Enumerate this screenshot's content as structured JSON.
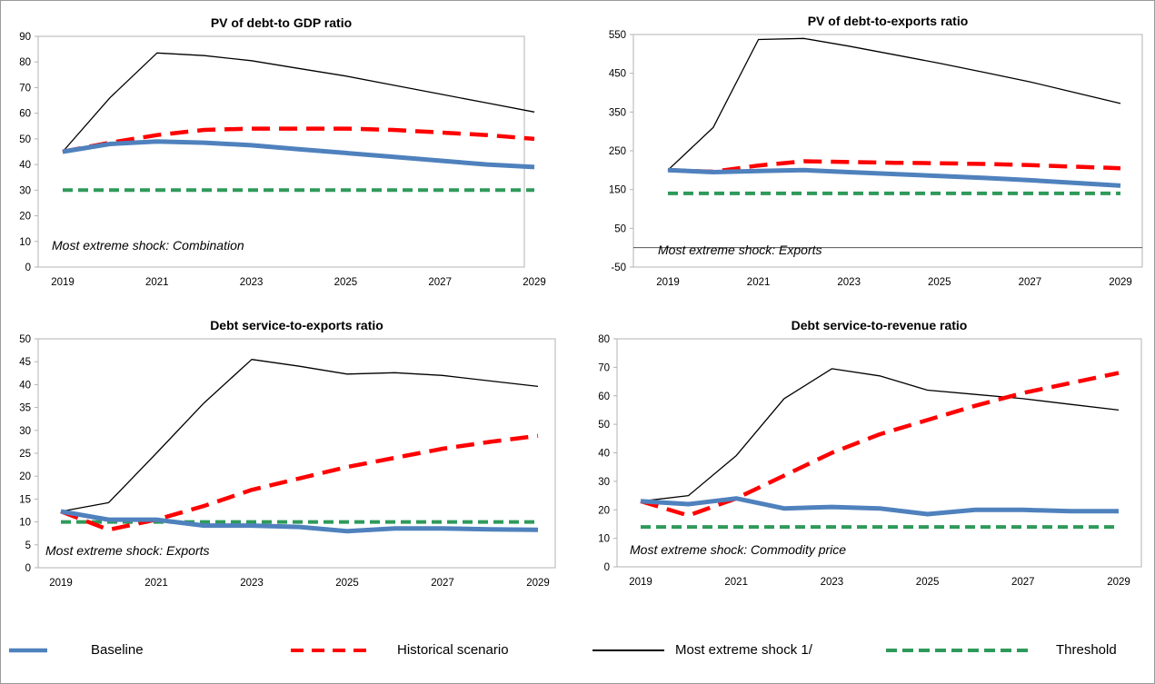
{
  "chart_data": [
    {
      "type": "line",
      "title": "PV of debt-to GDP ratio",
      "note": "Most extreme shock: Combination",
      "x": [
        2019,
        2020,
        2021,
        2022,
        2023,
        2024,
        2025,
        2026,
        2027,
        2028,
        2029
      ],
      "x_tick_labels": [
        "2019",
        "2021",
        "2023",
        "2025",
        "2027",
        "2029"
      ],
      "ylim": [
        0,
        90
      ],
      "y_ticks": [
        0,
        10,
        20,
        30,
        40,
        50,
        60,
        70,
        80,
        90
      ],
      "series": [
        {
          "name": "Baseline",
          "values": [
            45,
            48,
            49,
            48.5,
            47.5,
            46,
            44.5,
            43,
            41.5,
            40,
            39
          ]
        },
        {
          "name": "Historical scenario",
          "values": [
            45,
            48.5,
            51.5,
            53.5,
            54,
            54,
            54,
            53.5,
            52.5,
            51.5,
            50
          ]
        },
        {
          "name": "Most extreme shock 1/",
          "values": [
            45,
            66,
            83.5,
            82.5,
            80.5,
            77.5,
            74.5,
            71,
            67.5,
            64,
            60.5
          ]
        },
        {
          "name": "Threshold",
          "values": [
            30,
            30,
            30,
            30,
            30,
            30,
            30,
            30,
            30,
            30,
            30
          ]
        }
      ]
    },
    {
      "type": "line",
      "title": "PV of debt-to-exports ratio",
      "note": "Most extreme shock: Exports",
      "x": [
        2019,
        2020,
        2021,
        2022,
        2023,
        2024,
        2025,
        2026,
        2027,
        2028,
        2029
      ],
      "x_tick_labels": [
        "2019",
        "2021",
        "2023",
        "2025",
        "2027",
        "2029"
      ],
      "ylim": [
        -50,
        550
      ],
      "y_ticks": [
        -50,
        50,
        150,
        250,
        350,
        450,
        550
      ],
      "series": [
        {
          "name": "Baseline",
          "values": [
            200,
            195,
            198,
            200,
            195,
            190,
            185,
            180,
            174,
            167,
            160
          ]
        },
        {
          "name": "Historical scenario",
          "values": [
            200,
            196,
            212,
            223,
            221,
            219,
            218,
            216,
            213,
            209,
            205
          ]
        },
        {
          "name": "Most extreme shock 1/",
          "values": [
            200,
            310,
            537,
            540,
            520,
            498,
            476,
            452,
            428,
            400,
            372
          ]
        },
        {
          "name": "Threshold",
          "values": [
            140,
            140,
            140,
            140,
            140,
            140,
            140,
            140,
            140,
            140,
            140
          ]
        }
      ]
    },
    {
      "type": "line",
      "title": "Debt service-to-exports ratio",
      "note": "Most extreme shock: Exports",
      "x": [
        2019,
        2020,
        2021,
        2022,
        2023,
        2024,
        2025,
        2026,
        2027,
        2028,
        2029
      ],
      "x_tick_labels": [
        "2019",
        "2021",
        "2023",
        "2025",
        "2027",
        "2029"
      ],
      "ylim": [
        0,
        50
      ],
      "y_ticks": [
        0,
        5,
        10,
        15,
        20,
        25,
        30,
        35,
        40,
        45,
        50
      ],
      "series": [
        {
          "name": "Baseline",
          "values": [
            12.3,
            10.5,
            10.5,
            9.2,
            9.2,
            8.9,
            8,
            8.6,
            8.6,
            8.4,
            8.3
          ]
        },
        {
          "name": "Historical scenario",
          "values": [
            12.3,
            8.3,
            10.5,
            13.5,
            17,
            19.5,
            22,
            24,
            26,
            27.5,
            28.8
          ]
        },
        {
          "name": "Most extreme shock 1/",
          "values": [
            12.3,
            14.2,
            25,
            36,
            45.5,
            44,
            42.3,
            42.6,
            42,
            40.8,
            39.6
          ]
        },
        {
          "name": "Threshold",
          "values": [
            10,
            10,
            10,
            10,
            10,
            10,
            10,
            10,
            10,
            10,
            10
          ]
        }
      ]
    },
    {
      "type": "line",
      "title": "Debt service-to-revenue ratio",
      "note": "Most extreme shock: Commodity price",
      "x": [
        2019,
        2020,
        2021,
        2022,
        2023,
        2024,
        2025,
        2026,
        2027,
        2028,
        2029
      ],
      "x_tick_labels": [
        "2019",
        "2021",
        "2023",
        "2025",
        "2027",
        "2029"
      ],
      "ylim": [
        0,
        80
      ],
      "y_ticks": [
        0,
        10,
        20,
        30,
        40,
        50,
        60,
        70,
        80
      ],
      "series": [
        {
          "name": "Baseline",
          "values": [
            23,
            22,
            24,
            20.5,
            21,
            20.5,
            18.5,
            20,
            20,
            19.5,
            19.5
          ]
        },
        {
          "name": "Historical scenario",
          "values": [
            23,
            18,
            24,
            32,
            40,
            46.5,
            51.5,
            56.5,
            61,
            64.5,
            68
          ]
        },
        {
          "name": "Most extreme shock 1/",
          "values": [
            23,
            25,
            39,
            59,
            69.5,
            67,
            62,
            60.5,
            59,
            57,
            55
          ]
        },
        {
          "name": "Threshold",
          "values": [
            14,
            14,
            14,
            14,
            14,
            14,
            14,
            14,
            14,
            14,
            14
          ]
        }
      ]
    }
  ],
  "legend": [
    {
      "name": "Baseline",
      "color": "#4f81bd",
      "style": "solid-thick"
    },
    {
      "name": "Historical scenario",
      "color": "#ff0000",
      "style": "dashed"
    },
    {
      "name": "Most extreme shock 1/",
      "color": "#000000",
      "style": "solid-thin"
    },
    {
      "name": "Threshold",
      "color": "#2e9a5a",
      "style": "dashed"
    }
  ],
  "colors": {
    "baseline": "#4f81bd",
    "historical": "#ff0000",
    "shock": "#000000",
    "threshold": "#2e9a5a",
    "plot_border": "#b3b3b3"
  }
}
